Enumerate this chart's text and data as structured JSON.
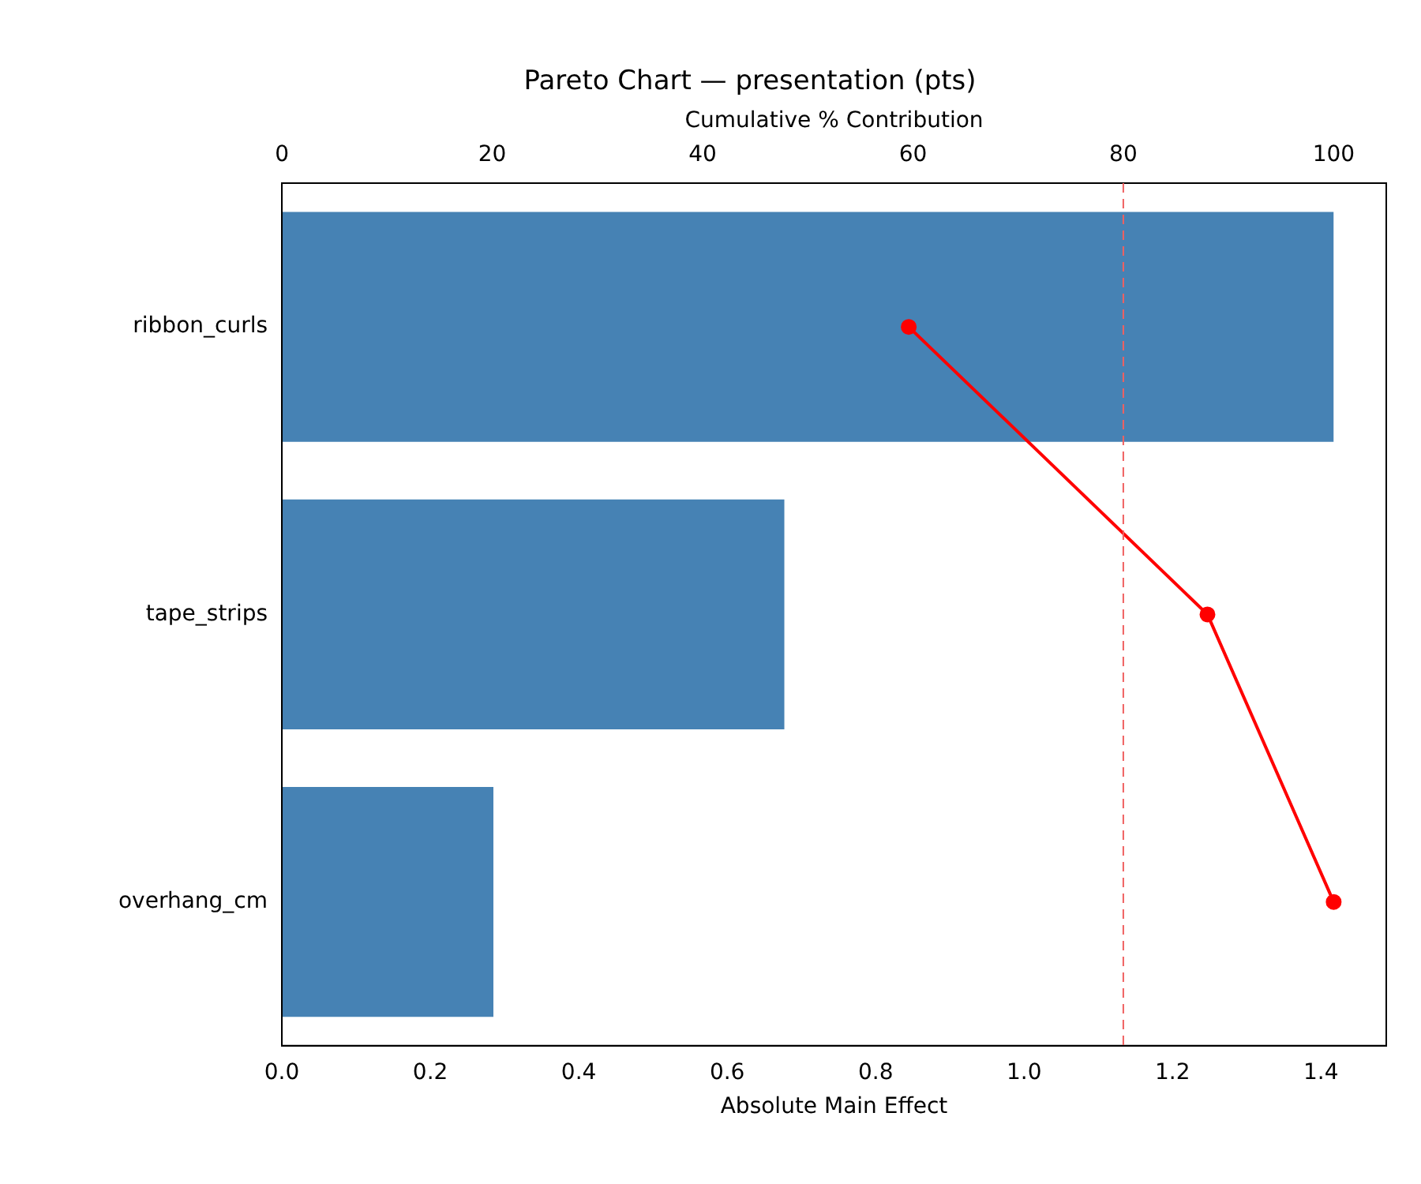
{
  "chart_data": {
    "type": "bar",
    "orientation": "horizontal",
    "title": "Pareto Chart — presentation (pts)",
    "xlabel": "Absolute Main Effect",
    "x2label": "Cumulative % Contribution",
    "categories": [
      "ribbon_curls",
      "tape_strips",
      "overhang_cm"
    ],
    "series": [
      {
        "color": "#4682b4",
        "values": [
          1.417,
          0.677,
          0.285
        ]
      },
      {
        "type": "line",
        "axis": "x2",
        "color": "#ff0000",
        "marker": "circle",
        "values": [
          59.6,
          88.0,
          100
        ]
      }
    ],
    "xlim": [
      0,
      1.488
    ],
    "xticks": [
      {
        "value": 0,
        "label": "0.0"
      },
      {
        "value": 0.2,
        "label": "0.2"
      },
      {
        "value": 0.4,
        "label": "0.4"
      },
      {
        "value": 0.6,
        "label": "0.6"
      },
      {
        "value": 0.8,
        "label": "0.8"
      },
      {
        "value": 1,
        "label": "1.0"
      },
      {
        "value": 1.2,
        "label": "1.2"
      },
      {
        "value": 1.4,
        "label": "1.4"
      }
    ],
    "x2lim": [
      0,
      105
    ],
    "x2ticks": [
      0,
      20,
      40,
      60,
      80,
      100
    ],
    "ref_lines": [
      {
        "axis": "x2",
        "value": 80,
        "color": "#f06060",
        "line_style": "dashed"
      }
    ],
    "grid": false,
    "legend": false
  }
}
